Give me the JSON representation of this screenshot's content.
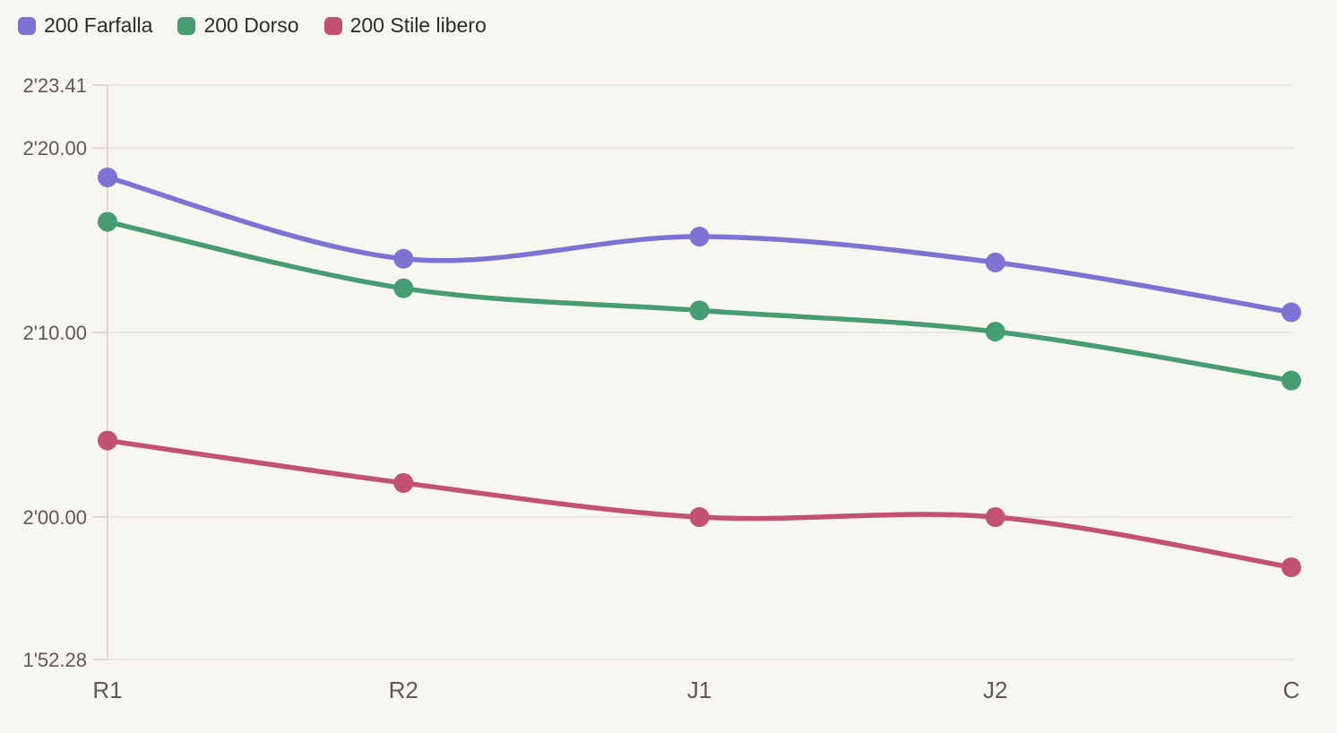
{
  "legend": {
    "items": [
      {
        "label": "200 Farfalla",
        "color": "#7c73d4"
      },
      {
        "label": "200 Dorso",
        "color": "#479c72"
      },
      {
        "label": "200 Stile libero",
        "color": "#c25173"
      }
    ]
  },
  "chart_data": {
    "type": "line",
    "title": "",
    "x_categories": [
      "R1",
      "R2",
      "J1",
      "J2",
      "C"
    ],
    "series": [
      {
        "name": "200 Farfalla",
        "color": "#7c73d4",
        "values_seconds": [
          138.41,
          134.0,
          135.2,
          133.8,
          131.1
        ],
        "values_time": [
          "2'18.41",
          "2'14.00",
          "2'15.20",
          "2'13.80",
          "2'11.10"
        ]
      },
      {
        "name": "200 Dorso",
        "color": "#479c72",
        "values_seconds": [
          136.0,
          132.4,
          131.2,
          130.05,
          127.4
        ],
        "values_time": [
          "2'16.00",
          "2'12.40",
          "2'11.20",
          "2'10.05",
          "2'07.40"
        ]
      },
      {
        "name": "200 Stile libero",
        "color": "#c25173",
        "values_seconds": [
          124.15,
          121.85,
          120.0,
          120.0,
          117.28
        ],
        "values_time": [
          "2'04.15",
          "2'01.85",
          "2'00.00",
          "2'00.00",
          "1'57.28"
        ]
      }
    ],
    "y_axis": {
      "unit": "time (min'sec.hundredths)",
      "min_seconds": 112.28,
      "max_seconds": 143.41,
      "ticks": [
        {
          "seconds": 143.41,
          "label": "2'23.41"
        },
        {
          "seconds": 140.0,
          "label": "2'20.00"
        },
        {
          "seconds": 130.0,
          "label": "2'10.00"
        },
        {
          "seconds": 120.0,
          "label": "2'00.00"
        },
        {
          "seconds": 112.28,
          "label": "1'52.28"
        }
      ]
    },
    "smooth": true,
    "grid": true,
    "legend_position": "top-left"
  },
  "style": {
    "background": "#f8f6f0",
    "gridline_color": "#e9e6e0",
    "axis_color": "#dcd8d1",
    "axis_label_color": "#5d5a53",
    "legend_text_color": "#2c2b28"
  }
}
